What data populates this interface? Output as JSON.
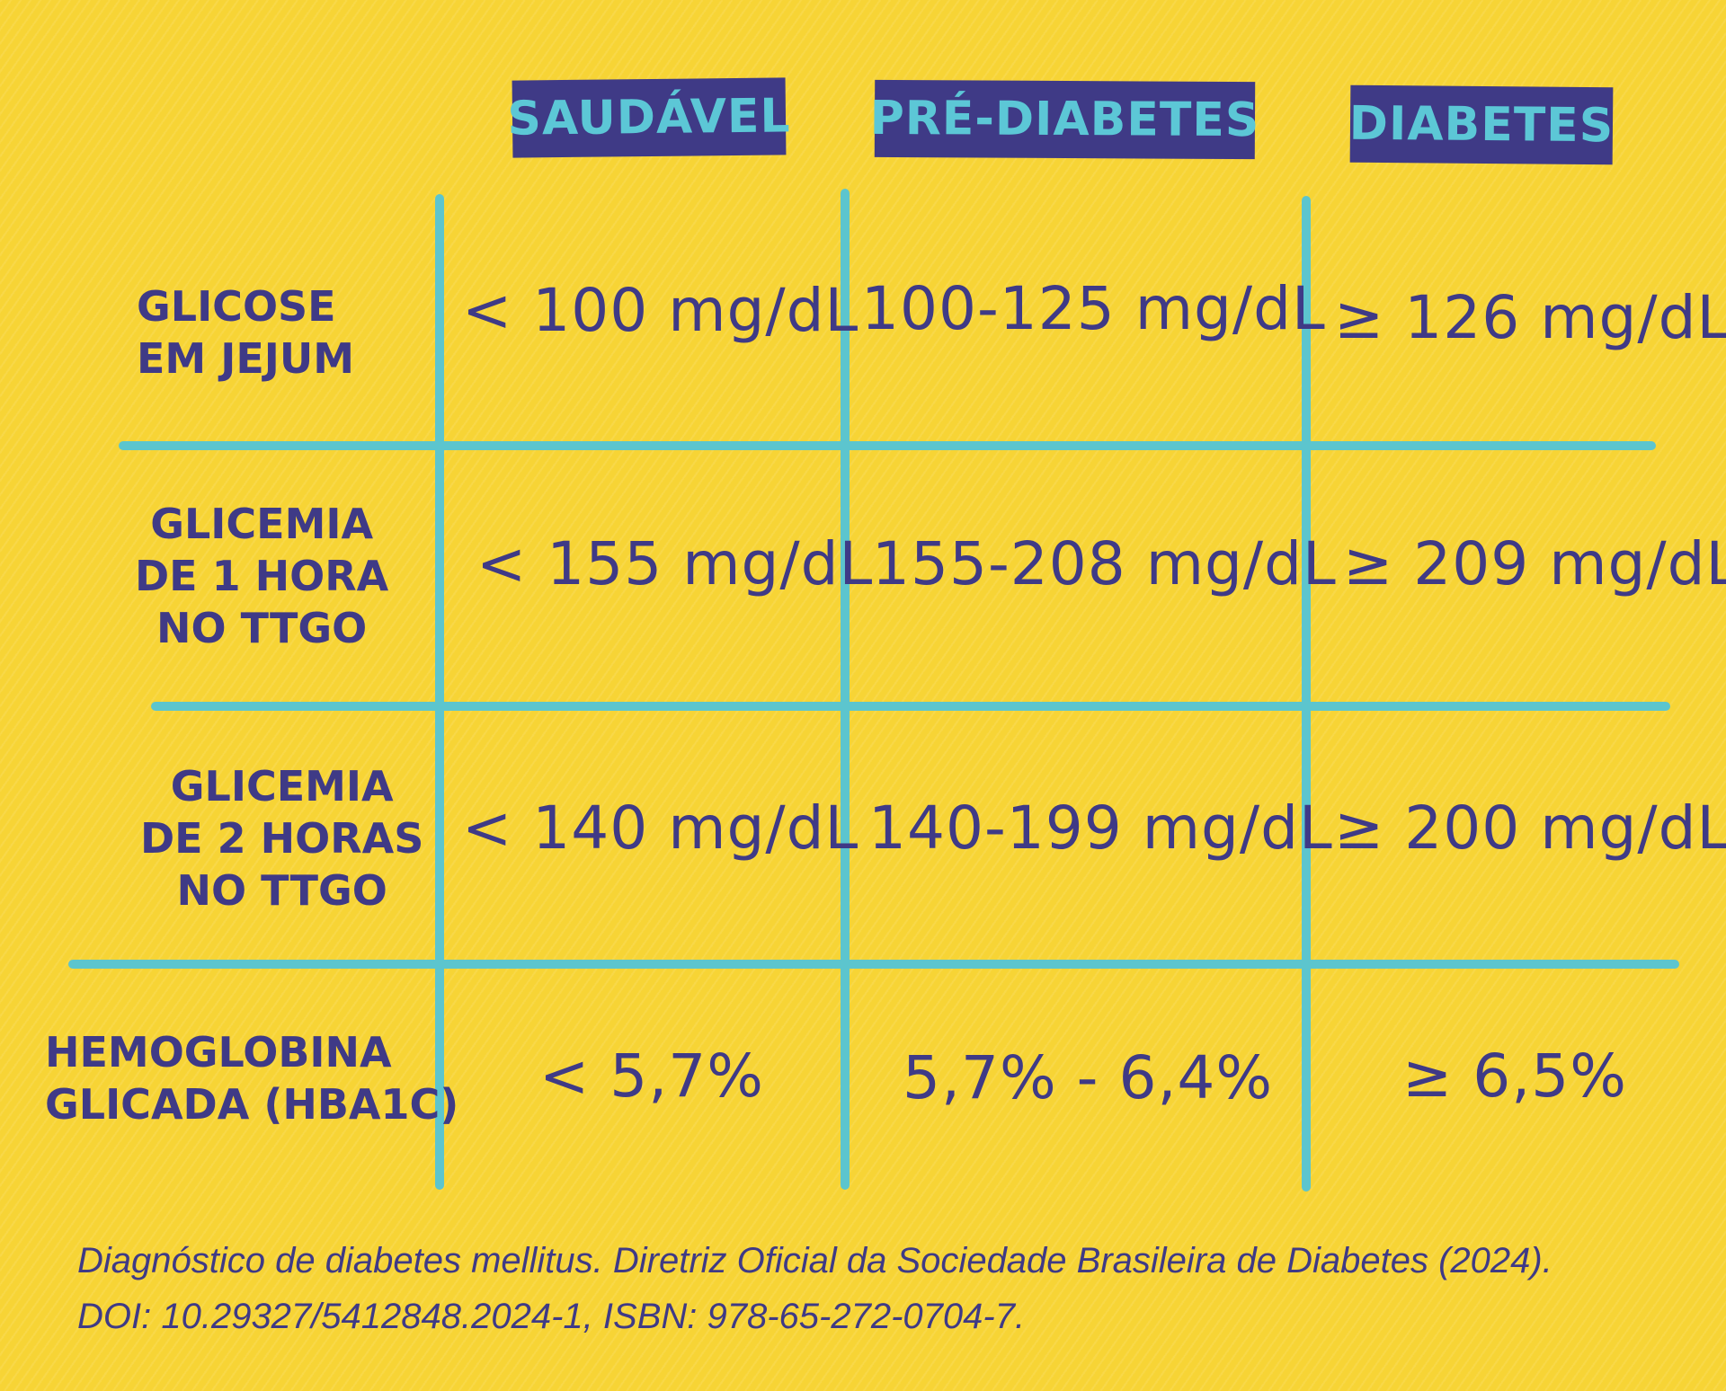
{
  "headers": {
    "saudavel": "SAUDÁVEL",
    "pre_diabetes": "PRÉ-DIABETES",
    "diabetes": "DIABETES"
  },
  "rows": [
    {
      "label": "GLICOSE\nEM JEJUM",
      "saudavel": "< 100 mg/dL",
      "pre_diabetes": "100-125 mg/dL",
      "diabetes": "≥ 126 mg/dL"
    },
    {
      "label": "GLICEMIA\nDE 1 HORA\nNO TTGO",
      "saudavel": "< 155 mg/dL",
      "pre_diabetes": "155-208 mg/dL",
      "diabetes": "≥ 209 mg/dL"
    },
    {
      "label": "GLICEMIA\nDE 2 HORAS\nNO TTGO",
      "saudavel": "< 140 mg/dL",
      "pre_diabetes": "140-199 mg/dL",
      "diabetes": "≥ 200 mg/dL"
    },
    {
      "label": "HEMOGLOBINA\nGLICADA (HBA1C)",
      "saudavel": "< 5,7%",
      "pre_diabetes": "5,7% - 6,4%",
      "diabetes": "≥ 6,5%"
    }
  ],
  "footer": {
    "line1": "Diagnóstico de diabetes mellitus. Diretriz Oficial da Sociedade Brasileira de Diabetes (2024).",
    "line2": "DOI: 10.29327/5412848.2024-1, ISBN: 978-65-272-0704-7."
  },
  "colors": {
    "background": "#f7d435",
    "header_bg": "#3f3a86",
    "header_text": "#5cc7d6",
    "grid_lines": "#5cc5ce",
    "text": "#3f3a86"
  }
}
